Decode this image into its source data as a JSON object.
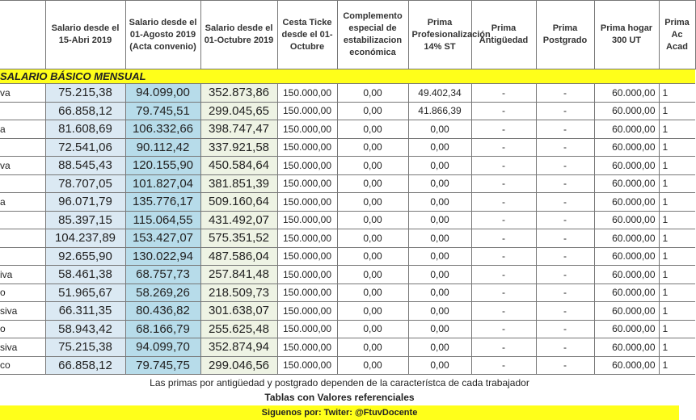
{
  "headers": [
    "",
    "Salario desde el 15-Abri 2019",
    "Salario desde el 01-Agosto 2019 (Acta convenio)",
    "Salario desde el 01-Octubre 2019",
    "Cesta Ticke desde el 01-Octubre",
    "Complemento especial de estabilizacion económica",
    "Prima Profesionalización 14% ST",
    "Prima Antigüedad",
    "Prima Postgrado",
    "Prima hogar 300 UT",
    "Prima Ac Acad"
  ],
  "section_title": "SALARIO BÁSICO MENSUAL",
  "rows": [
    [
      "va",
      "75.215,38",
      "94.099,00",
      "352.873,86",
      "150.000,00",
      "0,00",
      "49.402,34",
      "-",
      "-",
      "60.000,00",
      "1"
    ],
    [
      "",
      "66.858,12",
      "79.745,51",
      "299.045,65",
      "150.000,00",
      "0,00",
      "41.866,39",
      "-",
      "-",
      "60.000,00",
      "1"
    ],
    [
      "a",
      "81.608,69",
      "106.332,66",
      "398.747,47",
      "150.000,00",
      "0,00",
      "0,00",
      "-",
      "-",
      "60.000,00",
      "1"
    ],
    [
      "",
      "72.541,06",
      "90.112,42",
      "337.921,58",
      "150.000,00",
      "0,00",
      "0,00",
      "-",
      "-",
      "60.000,00",
      "1"
    ],
    [
      "va",
      "88.545,43",
      "120.155,90",
      "450.584,64",
      "150.000,00",
      "0,00",
      "0,00",
      "-",
      "-",
      "60.000,00",
      "1"
    ],
    [
      "",
      "78.707,05",
      "101.827,04",
      "381.851,39",
      "150.000,00",
      "0,00",
      "0,00",
      "-",
      "-",
      "60.000,00",
      "1"
    ],
    [
      "a",
      "96.071,79",
      "135.776,17",
      "509.160,64",
      "150.000,00",
      "0,00",
      "0,00",
      "-",
      "-",
      "60.000,00",
      "1"
    ],
    [
      "",
      "85.397,15",
      "115.064,55",
      "431.492,07",
      "150.000,00",
      "0,00",
      "0,00",
      "-",
      "-",
      "60.000,00",
      "1"
    ],
    [
      "",
      "104.237,89",
      "153.427,07",
      "575.351,52",
      "150.000,00",
      "0,00",
      "0,00",
      "-",
      "-",
      "60.000,00",
      "1"
    ],
    [
      "",
      "92.655,90",
      "130.022,94",
      "487.586,04",
      "150.000,00",
      "0,00",
      "0,00",
      "-",
      "-",
      "60.000,00",
      "1"
    ],
    [
      "iva",
      "58.461,38",
      "68.757,73",
      "257.841,48",
      "150.000,00",
      "0,00",
      "0,00",
      "-",
      "-",
      "60.000,00",
      "1"
    ],
    [
      "o",
      "51.965,67",
      "58.269,26",
      "218.509,73",
      "150.000,00",
      "0,00",
      "0,00",
      "-",
      "-",
      "60.000,00",
      "1"
    ],
    [
      "siva",
      "66.311,35",
      "80.436,82",
      "301.638,07",
      "150.000,00",
      "0,00",
      "0,00",
      "-",
      "-",
      "60.000,00",
      "1"
    ],
    [
      "o",
      "58.943,42",
      "68.166,79",
      "255.625,48",
      "150.000,00",
      "0,00",
      "0,00",
      "-",
      "-",
      "60.000,00",
      "1"
    ],
    [
      "siva",
      "75.215,38",
      "94.099,70",
      "352.874,94",
      "150.000,00",
      "0,00",
      "0,00",
      "-",
      "-",
      "60.000,00",
      "1"
    ],
    [
      "co",
      "66.858,12",
      "79.745,75",
      "299.046,56",
      "150.000,00",
      "0,00",
      "0,00",
      "-",
      "-",
      "60.000,00",
      "1"
    ]
  ],
  "note": "Las primas por antigüedad y postgrado dependen de la característca de cada trabajador",
  "subtitle": "Tablas con Valores referenciales",
  "footer": "Siguenos por: Twiter: @FtuvDocente",
  "colors": {
    "highlight_yellow": "#ffff1a",
    "col1_bg": "#dbe9f3",
    "col2_bg": "#b7dcea",
    "col3_bg": "#eef3e4"
  }
}
